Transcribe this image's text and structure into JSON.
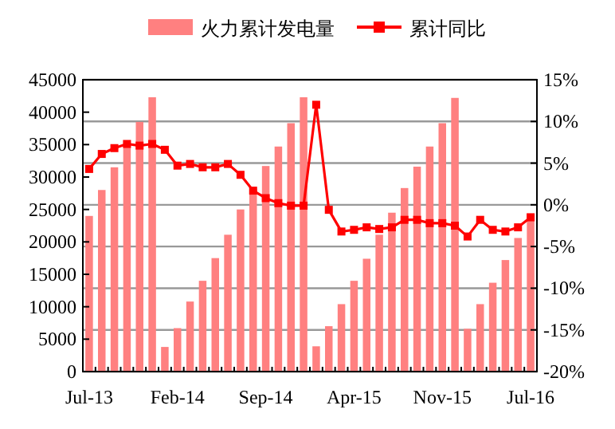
{
  "chart_data": {
    "type": "bar",
    "categories": [
      "Jul-13",
      null,
      null,
      null,
      null,
      null,
      null,
      "Feb-14",
      null,
      null,
      null,
      null,
      null,
      null,
      "Sep-14",
      null,
      null,
      null,
      null,
      null,
      null,
      "Apr-15",
      null,
      null,
      null,
      null,
      null,
      null,
      "Nov-15",
      null,
      null,
      null,
      null,
      null,
      null,
      "Jul-16"
    ],
    "series": [
      {
        "name": "火力累计发电量",
        "color": "#ff8080",
        "values": [
          24000,
          28000,
          31500,
          34800,
          38500,
          42300,
          3800,
          6700,
          10800,
          14000,
          17500,
          21100,
          25000,
          28200,
          31700,
          34700,
          38300,
          42300,
          3900,
          7000,
          10400,
          14000,
          17400,
          21100,
          24500,
          28300,
          31600,
          34700,
          38300,
          42200,
          6600,
          10400,
          13700,
          17200,
          20600,
          24400
        ]
      },
      {
        "name": "累计同比",
        "type": "line",
        "axis": "y2",
        "color": "#ff0000",
        "marker": "square",
        "values": [
          4.3,
          6.1,
          6.8,
          7.3,
          7.1,
          7.3,
          6.6,
          4.7,
          4.9,
          4.5,
          4.5,
          4.9,
          3.6,
          1.7,
          0.8,
          0.2,
          -0.1,
          -0.1,
          12.0,
          -0.6,
          -3.2,
          -3.0,
          -2.7,
          -2.9,
          -2.7,
          -1.8,
          -1.8,
          -2.2,
          -2.2,
          -2.5,
          -3.8,
          -1.8,
          -3.0,
          -3.2,
          -2.7,
          -1.5
        ]
      }
    ],
    "ylim": [
      0,
      45000
    ],
    "yticks": [
      0,
      5000,
      10000,
      15000,
      20000,
      25000,
      30000,
      35000,
      40000,
      45000
    ],
    "y2lim": [
      -20,
      15
    ],
    "y2ticks": [
      {
        "value": -20,
        "label": "-20%"
      },
      {
        "value": -15,
        "label": "-15%"
      },
      {
        "value": -10,
        "label": "-10%"
      },
      {
        "value": -5,
        "label": "-5%"
      },
      {
        "value": 0,
        "label": "0%"
      },
      {
        "value": 5,
        "label": "5%"
      },
      {
        "value": 10,
        "label": "10%"
      },
      {
        "value": 15,
        "label": "15%"
      }
    ],
    "grid": true,
    "legend": "top"
  }
}
